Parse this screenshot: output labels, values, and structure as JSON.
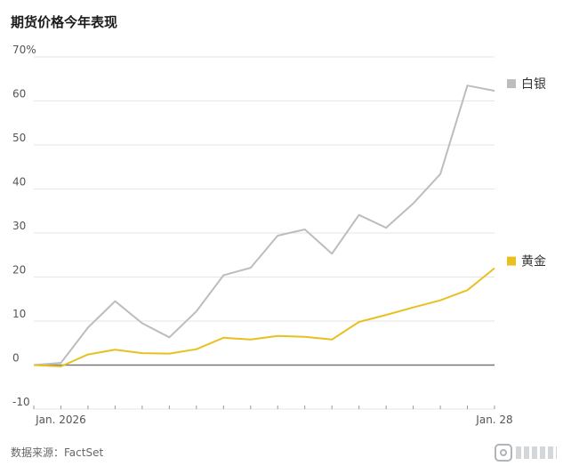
{
  "title": "期货价格今年表现",
  "source": "数据来源：FactSet",
  "chart_data": {
    "type": "line",
    "y_unit": "%",
    "ylim": [
      -10,
      70
    ],
    "y_ticks": [
      -10,
      0,
      10,
      20,
      30,
      40,
      50,
      60,
      70
    ],
    "y_tick_labels": [
      "-10",
      "0",
      "10",
      "20",
      "30",
      "40",
      "50",
      "60",
      "70%"
    ],
    "x_tick_labels": [
      {
        "index": 1,
        "label": "Jan. 2026"
      },
      {
        "index": 17,
        "label": "Jan. 28"
      }
    ],
    "x": [
      0,
      1,
      2,
      3,
      4,
      5,
      6,
      7,
      8,
      9,
      10,
      11,
      12,
      13,
      14,
      15,
      16,
      17
    ],
    "grid": true,
    "legend": "right",
    "series": [
      {
        "name": "白银",
        "color": "#bdbdbd",
        "values": [
          0,
          0.5,
          8.5,
          14.5,
          9.5,
          6.3,
          12.2,
          20.4,
          22.1,
          29.4,
          30.8,
          25.3,
          34.1,
          31.2,
          36.7,
          43.4,
          63.5,
          62.3
        ]
      },
      {
        "name": "黄金",
        "color": "#e8c020",
        "values": [
          0,
          -0.3,
          2.4,
          3.5,
          2.7,
          2.6,
          3.6,
          6.2,
          5.8,
          6.6,
          6.4,
          5.8,
          9.8,
          11.4,
          13.1,
          14.7,
          17.0,
          22.0
        ]
      }
    ]
  }
}
